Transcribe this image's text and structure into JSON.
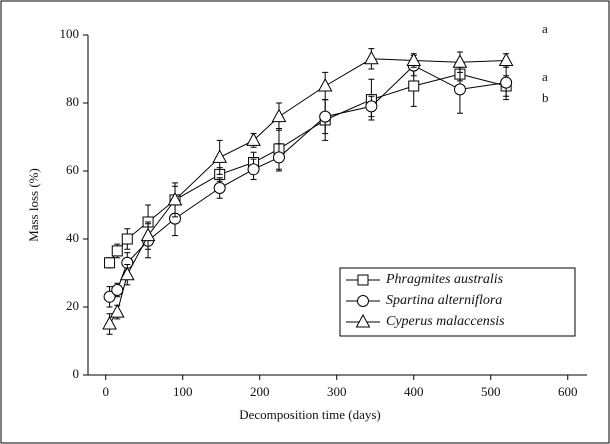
{
  "chart_data": {
    "type": "line",
    "x_label": "Decomposition time (days)",
    "y_label": "Mass loss (%)",
    "x": [
      5,
      15,
      28,
      55,
      90,
      148,
      192,
      225,
      285,
      345,
      400,
      460,
      520
    ],
    "series": [
      {
        "name": "Phragmites australis",
        "marker": "square",
        "color": "#000000",
        "values": [
          33,
          36.5,
          40,
          45,
          51.5,
          59,
          62.5,
          66.5,
          75,
          81,
          85,
          88.5,
          85
        ],
        "errors": [
          1.5,
          2,
          3,
          5,
          4,
          2,
          3,
          6,
          6,
          6,
          6,
          2,
          3
        ]
      },
      {
        "name": "Spartina alterniflora",
        "marker": "circle",
        "color": "#000000",
        "values": [
          23,
          25,
          33,
          39.5,
          46,
          55,
          60.5,
          64,
          76,
          79,
          91,
          84,
          86
        ],
        "errors": [
          3,
          2,
          3,
          5,
          5,
          3,
          3,
          4,
          5,
          3,
          3,
          7,
          5
        ]
      },
      {
        "name": "Cyperus malaccensis",
        "marker": "triangle",
        "color": "#000000",
        "values": [
          15,
          18.5,
          29.5,
          41,
          51.5,
          64,
          69,
          76,
          85,
          93,
          92.5,
          92,
          92.5
        ],
        "errors": [
          3,
          2,
          3,
          4,
          5,
          5,
          2,
          4,
          4,
          3,
          2,
          3,
          2
        ]
      }
    ],
    "annotations": [
      "a",
      "a",
      "b"
    ],
    "xlim": [
      -23,
      625
    ],
    "xticks": [
      0,
      100,
      200,
      300,
      400,
      500,
      600
    ],
    "ylim": [
      0,
      100
    ],
    "yticks": [
      0,
      20,
      40,
      60,
      80,
      100
    ],
    "legend": "bottom-right"
  }
}
